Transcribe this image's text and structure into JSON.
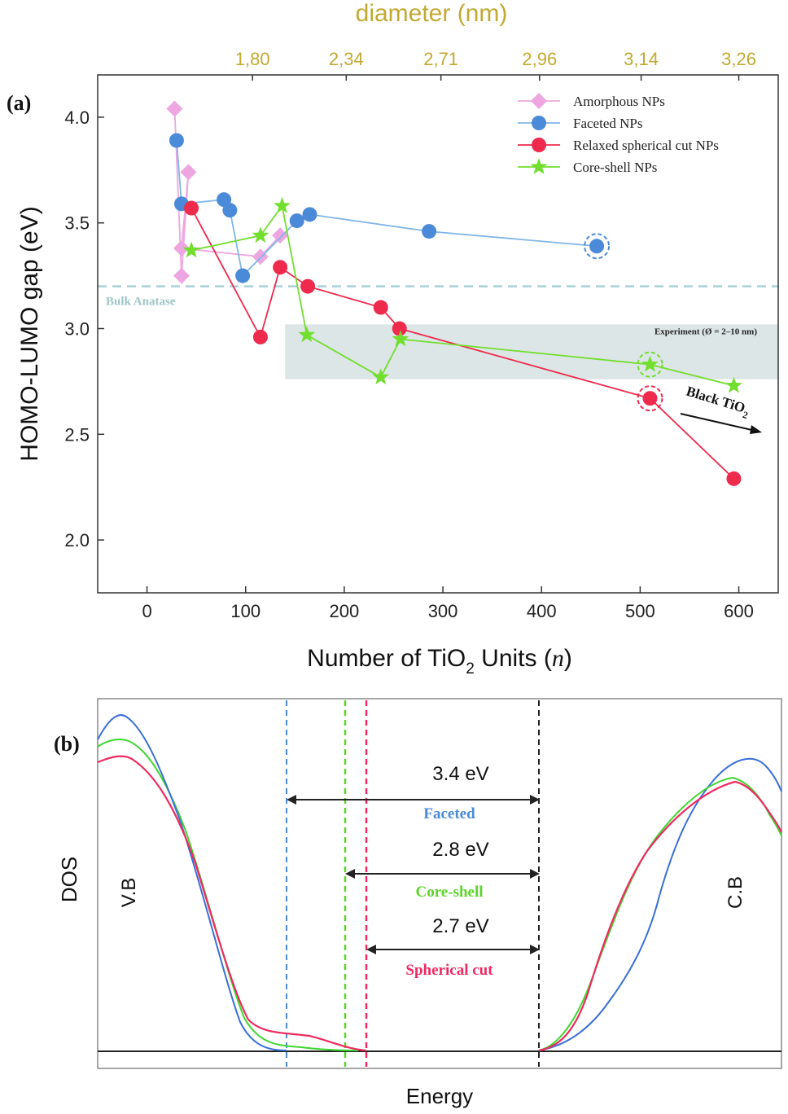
{
  "chart_data": [
    {
      "type": "line",
      "panel_label": "(a)",
      "xlabel_main": "Number of TiO",
      "xlabel_sub": "2",
      "xlabel_rest": " Units (",
      "xlabel_var": "n",
      "xlabel_end": ")",
      "ylabel": "HOMO-LUMO gap (eV)",
      "top_axis_label": "diameter (nm)",
      "top_ticks": [
        {
          "label": "1,80",
          "x": 107
        },
        {
          "label": "2,34",
          "x": 202
        },
        {
          "label": "2,71",
          "x": 298
        },
        {
          "label": "2,96",
          "x": 398
        },
        {
          "label": "3,14",
          "x": 501
        },
        {
          "label": "3,26",
          "x": 600
        }
      ],
      "xlim": [
        -50,
        640
      ],
      "ylim": [
        1.75,
        4.2
      ],
      "xticks": [
        0,
        100,
        200,
        300,
        400,
        500,
        600
      ],
      "yticks": [
        2.0,
        2.5,
        3.0,
        3.5,
        4.0
      ],
      "ytick_labels": [
        "2.0",
        "2.5",
        "3.0",
        "3.5",
        "4.0"
      ],
      "bulk_line": {
        "y": 3.2,
        "label": "Bulk Anatase",
        "color": "#a6d0d6"
      },
      "experiment_band": {
        "x0": 140,
        "x1": 645,
        "y0": 2.76,
        "y1": 3.02,
        "label": "Experiment (Ø = 2–10 nm)",
        "color": "#dde6e6"
      },
      "black_tio2": {
        "text": "Black TiO",
        "sub": "2"
      },
      "legend_position": "top-right",
      "series": [
        {
          "name": "Amorphous NPs",
          "color": "#eea6e0",
          "marker": "diamond",
          "x": [
            28,
            35,
            35,
            42,
            115,
            135
          ],
          "y": [
            4.04,
            3.25,
            3.38,
            3.74,
            3.34,
            3.44
          ],
          "order": [
            [
              28,
              4.04
            ],
            [
              35,
              3.25
            ],
            [
              42,
              3.74
            ],
            [
              35,
              3.38
            ],
            [
              115,
              3.34
            ],
            [
              135,
              3.44
            ]
          ]
        },
        {
          "name": "Faceted NPs",
          "color": "#4a8ad8",
          "line_color": "#7fb6e8",
          "marker": "circle",
          "x": [
            30,
            35,
            78,
            84,
            97,
            152,
            165,
            286,
            456
          ],
          "y": [
            3.89,
            3.59,
            3.61,
            3.56,
            3.25,
            3.51,
            3.54,
            3.46,
            3.39
          ],
          "highlight": [
            456,
            3.39
          ]
        },
        {
          "name": "Relaxed spherical cut NPs",
          "color": "#ee2a4d",
          "marker": "circle",
          "x": [
            45,
            115,
            135,
            163,
            237,
            256,
            510,
            595
          ],
          "y": [
            3.57,
            2.96,
            3.29,
            3.2,
            3.1,
            3.0,
            2.67,
            2.29
          ],
          "highlight": [
            510,
            2.67
          ]
        },
        {
          "name": "Core-shell NPs",
          "color": "#72de2e",
          "marker": "star",
          "x": [
            45,
            115,
            137,
            162,
            237,
            257,
            510,
            595
          ],
          "y": [
            3.37,
            3.44,
            3.58,
            2.97,
            2.77,
            2.95,
            2.83,
            2.73
          ],
          "highlight": [
            510,
            2.83
          ]
        }
      ]
    },
    {
      "type": "line",
      "panel_label": "(b)",
      "ylabel": "DOS",
      "xlabel": "Energy",
      "vb_label": "V.B",
      "cb_label": "C.B",
      "gaps": [
        {
          "value": "3.4 eV",
          "name": "Faceted",
          "color": "#4a8ad8"
        },
        {
          "value": "2.8 eV",
          "name": "Core-shell",
          "color": "#5cd62a"
        },
        {
          "value": "2.7 eV",
          "name": "Spherical cut",
          "color": "#ee2a60"
        }
      ],
      "series": [
        {
          "name": "Faceted",
          "color": "#3a6fd8"
        },
        {
          "name": "Core-shell",
          "color": "#3fd630"
        },
        {
          "name": "Spherical cut",
          "color": "#ee2a60"
        }
      ]
    }
  ]
}
